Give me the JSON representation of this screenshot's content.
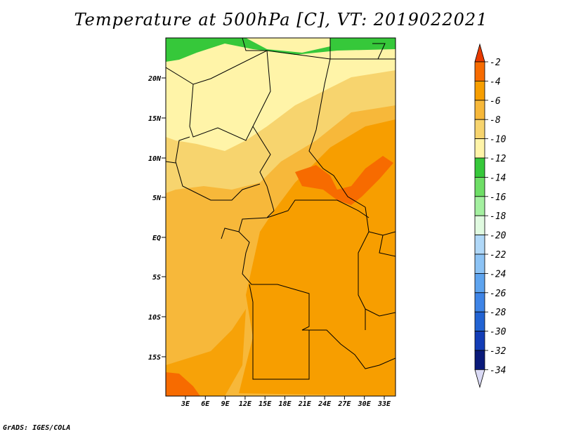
{
  "title": "Temperature at 500hPa [C], VT: 2019022021",
  "credit": "GrADS: IGES/COLA",
  "map": {
    "lat_labels": [
      "20N",
      "15N",
      "10N",
      "5N",
      "EQ",
      "5S",
      "10S",
      "15S"
    ],
    "lon_labels": [
      "3E",
      "6E",
      "9E",
      "12E",
      "15E",
      "18E",
      "21E",
      "24E",
      "27E",
      "30E",
      "33E"
    ]
  },
  "colorbar": {
    "labels": [
      "-2",
      "-4",
      "-6",
      "-8",
      "-10",
      "-12",
      "-14",
      "-16",
      "-18",
      "-20",
      "-22",
      "-24",
      "-26",
      "-28",
      "-30",
      "-32",
      "-34"
    ],
    "colors": [
      "#e83a00",
      "#f76b00",
      "#f79e00",
      "#f7b83a",
      "#f7d46e",
      "#fff4a8",
      "#36c83a",
      "#6ede66",
      "#a4f0a0",
      "#e0fae0",
      "#b0d8f8",
      "#8cc3f5",
      "#5ea4ef",
      "#3e84e6",
      "#2263d3",
      "#133db6",
      "#0a1a7a"
    ],
    "top_arrow_color": "#e83a00",
    "bottom_arrow_color": "#dadaf5"
  }
}
